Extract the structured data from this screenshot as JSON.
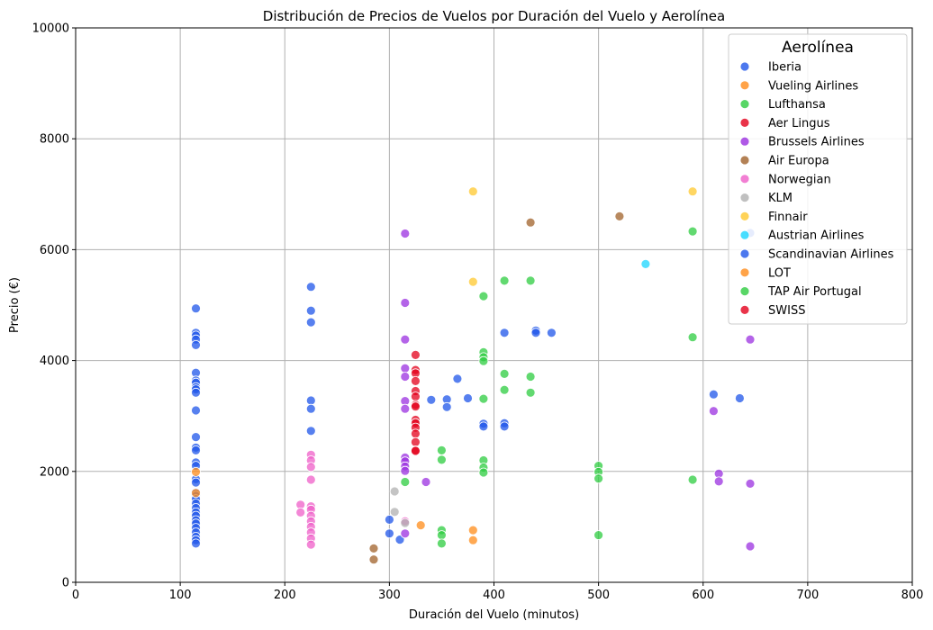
{
  "chart_data": {
    "type": "scatter",
    "title": "Distribución de Precios de Vuelos por Duración del Vuelo y Aerolínea",
    "xlabel": "Duración del Vuelo (minutos)",
    "ylabel": "Precio (€)",
    "xlim": [
      0,
      800
    ],
    "ylim": [
      0,
      10000
    ],
    "xticks": [
      "0",
      "100",
      "200",
      "300",
      "400",
      "500",
      "600",
      "700",
      "800"
    ],
    "yticks": [
      "0",
      "2000",
      "4000",
      "6000",
      "8000",
      "10000"
    ],
    "grid": true,
    "legend_title": "Aerolínea",
    "legend_position": "top-right",
    "series": [
      {
        "name": "Iberia",
        "color": "#1f56ea",
        "points": [
          [
            115,
            4940
          ],
          [
            115,
            4500
          ],
          [
            115,
            4450
          ],
          [
            115,
            4380
          ],
          [
            115,
            4280
          ],
          [
            115,
            3780
          ],
          [
            115,
            3640
          ],
          [
            115,
            3600
          ],
          [
            115,
            3520
          ],
          [
            115,
            3480
          ],
          [
            115,
            3420
          ],
          [
            115,
            3100
          ],
          [
            115,
            2620
          ],
          [
            115,
            2430
          ],
          [
            115,
            2380
          ],
          [
            115,
            2160
          ],
          [
            115,
            2100
          ],
          [
            115,
            1860
          ],
          [
            115,
            1800
          ],
          [
            115,
            1620
          ],
          [
            115,
            1560
          ],
          [
            115,
            1500
          ],
          [
            115,
            1420
          ],
          [
            115,
            1340
          ],
          [
            115,
            1260
          ],
          [
            115,
            1200
          ],
          [
            115,
            1120
          ],
          [
            115,
            1060
          ],
          [
            115,
            980
          ],
          [
            115,
            900
          ],
          [
            115,
            820
          ],
          [
            115,
            760
          ],
          [
            115,
            700
          ],
          [
            225,
            5330
          ],
          [
            225,
            4900
          ],
          [
            225,
            4690
          ],
          [
            225,
            3280
          ],
          [
            225,
            3130
          ],
          [
            225,
            2730
          ],
          [
            300,
            1130
          ],
          [
            300,
            880
          ],
          [
            310,
            770
          ],
          [
            340,
            3290
          ],
          [
            355,
            3300
          ],
          [
            355,
            3160
          ],
          [
            365,
            3670
          ],
          [
            375,
            3320
          ],
          [
            390,
            2860
          ],
          [
            390,
            2810
          ],
          [
            410,
            4500
          ],
          [
            410,
            2870
          ],
          [
            410,
            2810
          ],
          [
            440,
            4540
          ],
          [
            440,
            4500
          ],
          [
            455,
            4500
          ],
          [
            610,
            3390
          ],
          [
            635,
            3320
          ],
          [
            645,
            6300
          ]
        ]
      },
      {
        "name": "Vueling Airlines",
        "color": "#ff8c1a",
        "points": [
          [
            115,
            1990
          ],
          [
            115,
            1610
          ],
          [
            330,
            1030
          ],
          [
            380,
            940
          ],
          [
            380,
            760
          ]
        ]
      },
      {
        "name": "Lufthansa",
        "color": "#2ecc40",
        "points": [
          [
            315,
            1810
          ],
          [
            350,
            2380
          ],
          [
            350,
            2210
          ],
          [
            350,
            940
          ],
          [
            350,
            850
          ],
          [
            350,
            700
          ],
          [
            390,
            5160
          ],
          [
            390,
            4150
          ],
          [
            390,
            4060
          ],
          [
            390,
            3990
          ],
          [
            390,
            3310
          ],
          [
            390,
            2200
          ],
          [
            390,
            2070
          ],
          [
            390,
            1980
          ],
          [
            410,
            5440
          ],
          [
            410,
            3760
          ],
          [
            410,
            3470
          ],
          [
            435,
            5440
          ],
          [
            435,
            3710
          ],
          [
            435,
            3420
          ],
          [
            500,
            2100
          ],
          [
            500,
            1990
          ],
          [
            500,
            1870
          ],
          [
            500,
            850
          ],
          [
            590,
            6330
          ],
          [
            590,
            4420
          ],
          [
            590,
            1850
          ]
        ]
      },
      {
        "name": "Aer Lingus",
        "color": "#e3001b",
        "points": [
          [
            325,
            4100
          ],
          [
            325,
            3830
          ],
          [
            325,
            3770
          ],
          [
            325,
            3630
          ],
          [
            325,
            3450
          ],
          [
            325,
            3350
          ],
          [
            325,
            3200
          ],
          [
            325,
            3170
          ],
          [
            325,
            2930
          ],
          [
            325,
            2870
          ],
          [
            325,
            2790
          ],
          [
            325,
            2680
          ],
          [
            325,
            2530
          ],
          [
            325,
            2380
          ],
          [
            325,
            2370
          ]
        ]
      },
      {
        "name": "Brussels Airlines",
        "color": "#9b30e0",
        "points": [
          [
            315,
            6290
          ],
          [
            315,
            5040
          ],
          [
            315,
            4380
          ],
          [
            315,
            3860
          ],
          [
            315,
            3710
          ],
          [
            315,
            3270
          ],
          [
            315,
            3130
          ],
          [
            315,
            2250
          ],
          [
            315,
            2180
          ],
          [
            315,
            2090
          ],
          [
            315,
            2010
          ],
          [
            315,
            880
          ],
          [
            335,
            1810
          ],
          [
            610,
            3090
          ],
          [
            615,
            1960
          ],
          [
            615,
            1820
          ],
          [
            645,
            4380
          ],
          [
            645,
            1780
          ],
          [
            645,
            650
          ]
        ]
      },
      {
        "name": "Air Europa",
        "color": "#a0612a",
        "points": [
          [
            285,
            610
          ],
          [
            285,
            410
          ],
          [
            435,
            6490
          ],
          [
            520,
            6600
          ]
        ]
      },
      {
        "name": "Norwegian",
        "color": "#ef5fc8",
        "points": [
          [
            215,
            1400
          ],
          [
            215,
            1260
          ],
          [
            225,
            2300
          ],
          [
            225,
            2200
          ],
          [
            225,
            2080
          ],
          [
            225,
            1850
          ],
          [
            225,
            1370
          ],
          [
            225,
            1310
          ],
          [
            225,
            1200
          ],
          [
            225,
            1100
          ],
          [
            225,
            1000
          ],
          [
            225,
            900
          ],
          [
            225,
            790
          ],
          [
            225,
            680
          ],
          [
            315,
            1100
          ]
        ]
      },
      {
        "name": "KLM",
        "color": "#b0b0b0",
        "points": [
          [
            305,
            1640
          ],
          [
            305,
            1270
          ],
          [
            315,
            1070
          ]
        ]
      },
      {
        "name": "Finnair",
        "color": "#ffc82e",
        "points": [
          [
            380,
            7050
          ],
          [
            380,
            5420
          ],
          [
            590,
            7050
          ]
        ]
      },
      {
        "name": "Austrian Airlines",
        "color": "#1ad6ff",
        "points": [
          [
            545,
            5740
          ]
        ]
      },
      {
        "name": "Scandinavian Airlines",
        "color": "#1f56ea",
        "points": []
      },
      {
        "name": "LOT",
        "color": "#ff8c1a",
        "points": []
      },
      {
        "name": "TAP Air Portugal",
        "color": "#2ecc40",
        "points": []
      },
      {
        "name": "SWISS",
        "color": "#e3001b",
        "points": []
      }
    ]
  }
}
